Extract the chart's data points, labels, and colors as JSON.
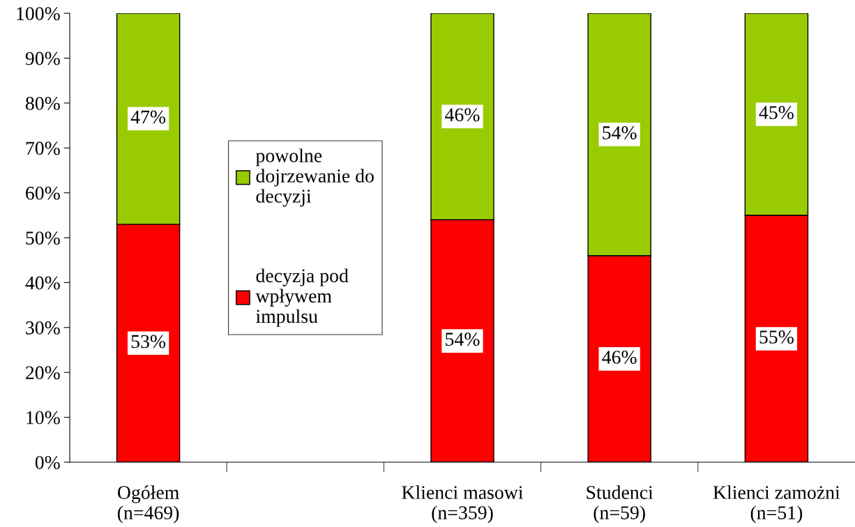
{
  "chart_data": {
    "type": "bar",
    "stacked": true,
    "categories": [
      "Ogółem\n(n=469)",
      null,
      "Klienci masowi\n(n=359)",
      "Studenci\n(n=59)",
      "Klienci zamożni\n(n=51)"
    ],
    "series": [
      {
        "name": "decyzja pod\nwpływem\nimpulsu",
        "color": "#ff0000",
        "values": [
          53,
          null,
          54,
          46,
          55
        ],
        "value_labels": [
          "53%",
          null,
          "54%",
          "46%",
          "55%"
        ]
      },
      {
        "name": "powolne\ndojrzewanie do\ndecyzji",
        "color": "#99cc00",
        "values": [
          47,
          null,
          46,
          54,
          45
        ],
        "value_labels": [
          "47%",
          null,
          "46%",
          "54%",
          "45%"
        ]
      }
    ],
    "ylim": [
      0,
      100
    ],
    "yticks": [
      {
        "value": 0,
        "label": "0%"
      },
      {
        "value": 10,
        "label": "10%"
      },
      {
        "value": 20,
        "label": "20%"
      },
      {
        "value": 30,
        "label": "30%"
      },
      {
        "value": 40,
        "label": "40%"
      },
      {
        "value": 50,
        "label": "50%"
      },
      {
        "value": 60,
        "label": "60%"
      },
      {
        "value": 70,
        "label": "70%"
      },
      {
        "value": 80,
        "label": "80%"
      },
      {
        "value": 90,
        "label": "90%"
      },
      {
        "value": 100,
        "label": "100%"
      }
    ],
    "grid": false,
    "legend": "center"
  }
}
